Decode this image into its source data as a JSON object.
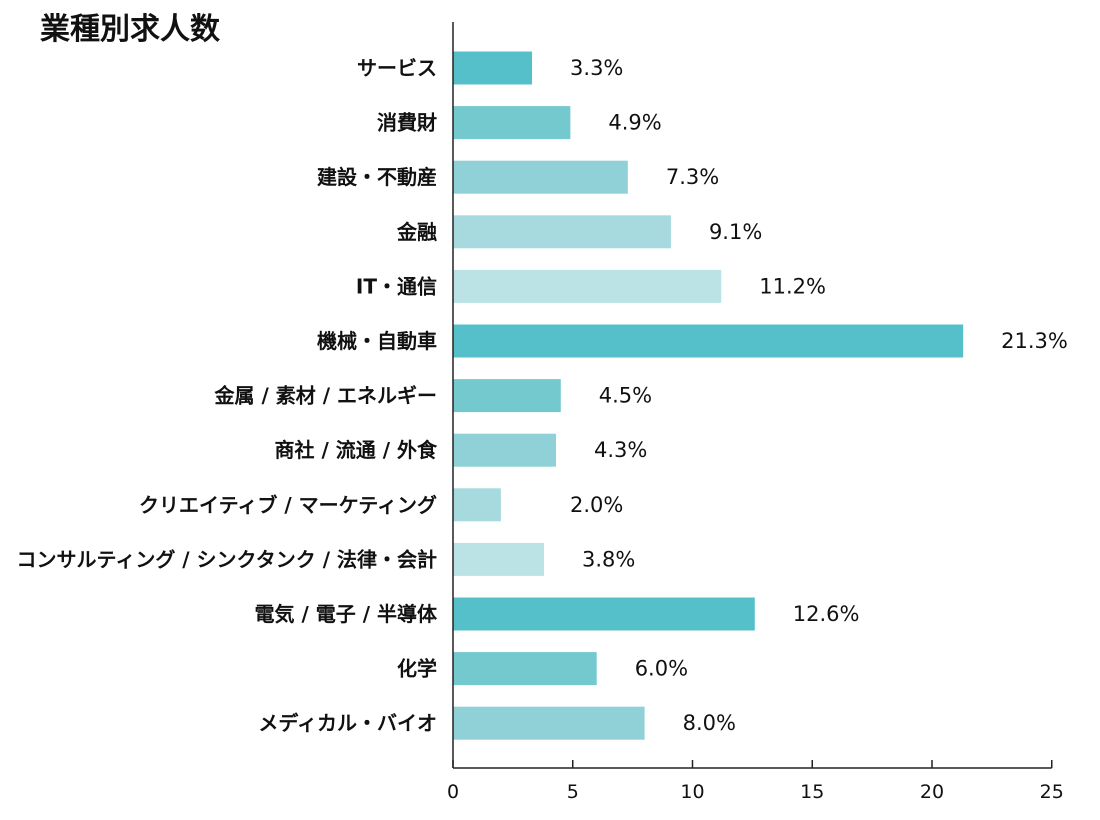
{
  "chart_data": {
    "type": "bar",
    "orientation": "horizontal",
    "title": "業種別求人数",
    "xlabel": "",
    "ylabel": "",
    "xlim": [
      0,
      25
    ],
    "x_ticks": [
      "0",
      "5",
      "10",
      "15",
      "20",
      "25"
    ],
    "grid": false,
    "legend": "none",
    "categories": [
      "サービス",
      "消費財",
      "建設・不動産",
      "金融",
      "IT・通信",
      "機械・自動車",
      "金属 / 素材 / エネルギー",
      "商社 / 流通 / 外食",
      "クリエイティブ / マーケティング",
      "コンサルティング / シンクタンク / 法律・会計",
      "電気 / 電子 / 半導体",
      "化学",
      "メディカル・バイオ"
    ],
    "values": [
      3.3,
      4.9,
      7.3,
      9.1,
      11.2,
      21.3,
      4.5,
      4.3,
      2.0,
      3.8,
      12.6,
      6.0,
      8.0
    ],
    "value_labels": [
      "3.3%",
      "4.9%",
      "7.3%",
      "9.1%",
      "11.2%",
      "21.3%",
      "4.5%",
      "4.3%",
      "2.0%",
      "3.8%",
      "12.6%",
      "6.0%",
      "8.0%"
    ],
    "colors": [
      "#55c0c9",
      "#74c9cf",
      "#8fd1d6",
      "#a7dade",
      "#bbe3e6",
      "#55c0c9",
      "#74c9cf",
      "#8fd1d6",
      "#a7dade",
      "#bbe3e6",
      "#55c0c9",
      "#74c9cf",
      "#8fd1d6"
    ]
  }
}
